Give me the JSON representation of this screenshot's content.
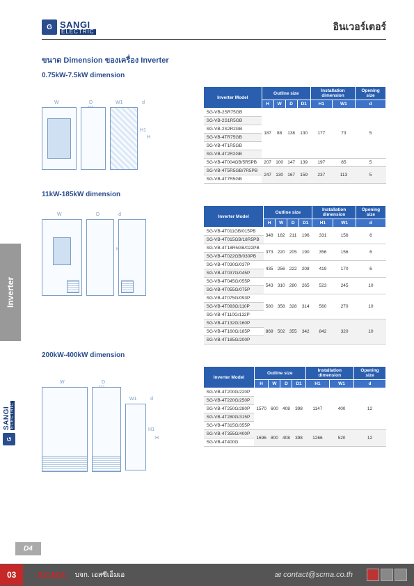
{
  "header": {
    "logo_icon": "G",
    "logo_name": "SANGI",
    "logo_sub": "ELECTRIC",
    "title_th": "อินเวอร์เตอร์"
  },
  "main_title": "ขนาด Dimension ของเครื่อง Inverter",
  "side_tab": "Inverter",
  "page_tab": "D4",
  "footer": {
    "page_num": "03",
    "scma": "SCMA",
    "company": "บจก. เอสซีเอ็มเอ",
    "contact_icon": "✉",
    "contact": "contact@scma.co.th"
  },
  "table_headers": {
    "model": "Inverter Model",
    "outline": "Outline size",
    "install": "Installation dimension",
    "opening": "Opening size",
    "cols": [
      "H",
      "W",
      "D",
      "D1",
      "H1",
      "W1",
      "d"
    ]
  },
  "sections": [
    {
      "title": "0.75kW-7.5kW dimension",
      "diagram": {
        "labels": [
          "W",
          "D",
          "D1",
          "W1",
          "d",
          "H",
          "H1"
        ]
      },
      "rows": [
        {
          "models": [
            "SG-VB-2SR75GB",
            "SG-VB-2S1R5GB",
            "SG-VB-2S2R2GB",
            "SG-VB-4TR75GB",
            "SG-VB-4T1R5GB",
            "SG-VB-4T2R2GB"
          ],
          "v": [
            "187",
            "88",
            "138",
            "130",
            "177",
            "73",
            "5"
          ]
        },
        {
          "models": [
            "SG-VB-4T004GB/5R5PB"
          ],
          "v": [
            "207",
            "100",
            "147",
            "139",
            "197",
            "85",
            "5"
          ]
        },
        {
          "models": [
            "SG-VB-4T5R5GB/7R5PB",
            "SG-VB-4T7R5GB"
          ],
          "v": [
            "247",
            "130",
            "167",
            "159",
            "237",
            "113",
            "5"
          ]
        }
      ]
    },
    {
      "title": "11kW-185kW dimension",
      "diagram": {
        "labels": [
          "W",
          "D",
          "d",
          "H",
          "H1"
        ]
      },
      "rows": [
        {
          "models": [
            "SG-VB-4T011GB/015PB",
            "SG-VB-4T015GB/18R5PB"
          ],
          "v": [
            "348",
            "182",
            "211",
            "196",
            "331",
            "156",
            "6"
          ]
        },
        {
          "models": [
            "SG-VB-4T18R5GB/022PB",
            "SG-VB-4T022GB/030PB"
          ],
          "v": [
            "373",
            "220",
            "205",
            "190",
            "356",
            "156",
            "6"
          ]
        },
        {
          "models": [
            "SG-VB-4T030G/037P",
            "SG-VB-4T037G/045P"
          ],
          "v": [
            "435",
            "256",
            "222",
            "208",
            "419",
            "170",
            "6"
          ]
        },
        {
          "models": [
            "SG-VB-4T045G/055P",
            "SG-VB-4T055G/075P"
          ],
          "v": [
            "543",
            "310",
            "280",
            "265",
            "523",
            "245",
            "10"
          ]
        },
        {
          "models": [
            "SG-VB-4T075G/093P",
            "SG-VB-4T093G/110P",
            "SG-VB-4T110G/132P"
          ],
          "v": [
            "580",
            "358",
            "328",
            "314",
            "560",
            "270",
            "10"
          ]
        },
        {
          "models": [
            "SG-VB-4T132G/160P",
            "SG-VB-4T160G/185P",
            "SG-VB-4T185G/200P"
          ],
          "v": [
            "869",
            "502",
            "355",
            "342",
            "842",
            "320",
            "10"
          ]
        }
      ]
    },
    {
      "title": "200kW-400kW dimension",
      "diagram": {
        "labels": [
          "W",
          "D",
          "D1",
          "W1",
          "d",
          "H",
          "H1"
        ]
      },
      "rows": [
        {
          "models": [
            "SG-VB-4T200G/220P",
            "SG-VB-4T220G/250P",
            "SG-VB-4T250G/280P",
            "SG-VB-4T280G/315P",
            "SG-VB-4T315G/355P"
          ],
          "v": [
            "1570",
            "600",
            "408",
            "398",
            "1147",
            "400",
            "12"
          ]
        },
        {
          "models": [
            "SG-VB-4T355G/400P",
            "SG-VB-4T400G"
          ],
          "v": [
            "1696",
            "800",
            "408",
            "398",
            "1266",
            "520",
            "12"
          ]
        }
      ]
    }
  ]
}
